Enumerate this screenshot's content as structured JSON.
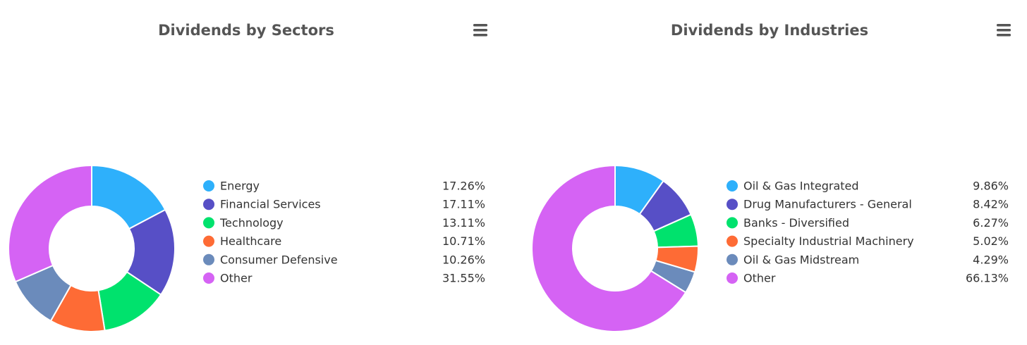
{
  "chart_data": [
    {
      "type": "pie",
      "title": "Dividends by Sectors",
      "categories": [
        "Energy",
        "Financial Services",
        "Technology",
        "Healthcare",
        "Consumer Defensive",
        "Other"
      ],
      "values": [
        17.26,
        17.11,
        13.11,
        10.71,
        10.26,
        31.55
      ],
      "value_labels": [
        "17.26%",
        "17.11%",
        "13.11%",
        "10.71%",
        "10.26%",
        "31.55%"
      ],
      "colors": [
        "#2eb0fb",
        "#574fc6",
        "#00e26d",
        "#fe6b35",
        "#6b8bbb",
        "#d563f4"
      ]
    },
    {
      "type": "pie",
      "title": "Dividends by Industries",
      "categories": [
        "Oil & Gas Integrated",
        "Drug Manufacturers - General",
        "Banks - Diversified",
        "Specialty Industrial Machinery",
        "Oil & Gas Midstream",
        "Other"
      ],
      "values": [
        9.86,
        8.42,
        6.27,
        5.02,
        4.29,
        66.13
      ],
      "value_labels": [
        "9.86%",
        "8.42%",
        "6.27%",
        "5.02%",
        "4.29%",
        "66.13%"
      ],
      "colors": [
        "#2eb0fb",
        "#574fc6",
        "#00e26d",
        "#fe6b35",
        "#6b8bbb",
        "#d563f4"
      ]
    }
  ]
}
